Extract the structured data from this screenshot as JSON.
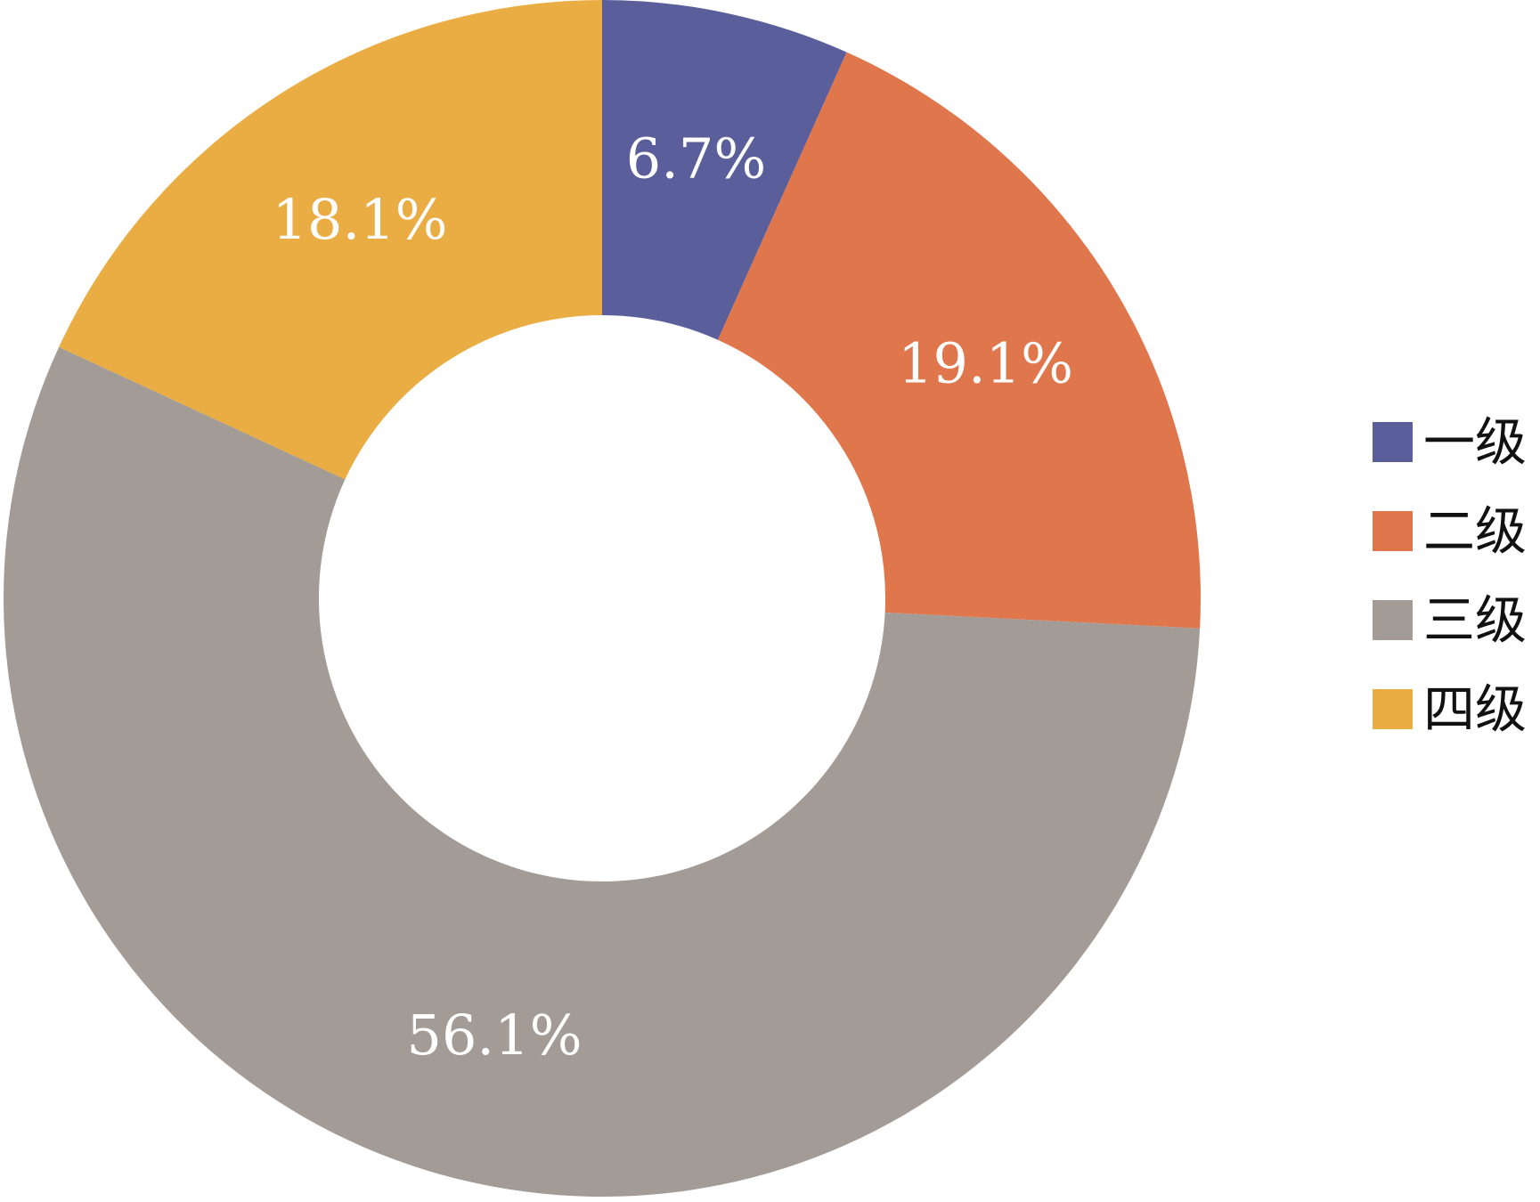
{
  "chart_data": {
    "type": "pie",
    "donut": true,
    "title": "",
    "legend_position": "right",
    "categories": [
      "一级",
      "二级",
      "三级",
      "四级"
    ],
    "values": [
      6.7,
      19.1,
      56.1,
      18.1
    ],
    "value_labels": [
      "6.7%",
      "19.1%",
      "56.1%",
      "18.1%"
    ],
    "colors": [
      "#5A5E9A",
      "#DF764C",
      "#A39B96",
      "#E9AD43"
    ],
    "start_angle": "12 o'clock",
    "direction": "clockwise"
  }
}
